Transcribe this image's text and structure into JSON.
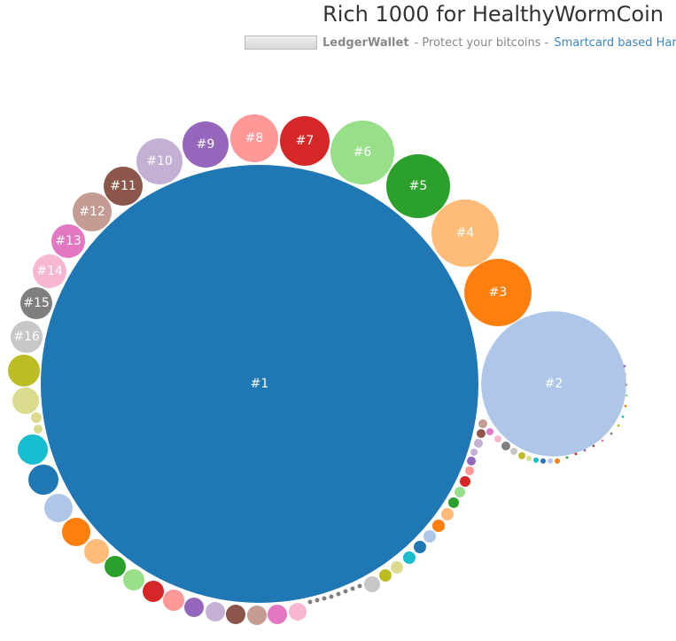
{
  "header": {
    "title": "Rich 1000 for HealthyWormCoin",
    "ad": {
      "brand": "LedgerWallet",
      "tagline": "- Protect your bitcoins -",
      "link": "Smartcard based Har"
    }
  },
  "chart_data": {
    "type": "bubble",
    "categories": [
      "#1",
      "#2",
      "#3",
      "#4",
      "#5",
      "#6",
      "#7",
      "#8",
      "#9",
      "#10",
      "#11",
      "#12",
      "#13",
      "#14",
      "#15",
      "#16",
      null,
      null,
      null,
      null,
      null,
      null,
      null,
      null,
      null,
      null,
      null,
      null,
      null,
      null,
      null,
      null,
      null,
      null,
      null,
      null,
      null,
      null,
      null,
      null,
      null,
      null,
      null,
      null,
      null,
      null,
      null,
      null,
      null,
      null,
      null,
      null,
      null,
      null,
      null,
      null,
      null,
      null,
      null,
      null,
      null,
      null,
      null,
      null,
      null,
      null,
      null,
      null,
      null,
      null,
      null,
      null,
      null,
      null,
      null,
      null,
      null,
      null,
      null,
      null,
      null,
      null,
      null
    ],
    "values": [
      61000,
      6700,
      1440,
      1440,
      1300,
      1300,
      784,
      729,
      676,
      676,
      484,
      484,
      361,
      361,
      324,
      324,
      324,
      225,
      36,
      25,
      289,
      289,
      256,
      256,
      196,
      144,
      144,
      144,
      144,
      121,
      121,
      121,
      121,
      121,
      100,
      6,
      6,
      6,
      6,
      6,
      6,
      6,
      6,
      81,
      49,
      49,
      49,
      49,
      49,
      49,
      49,
      36,
      36,
      36,
      25,
      25,
      16,
      25,
      25,
      25,
      16,
      16,
      25,
      16,
      16,
      9,
      9,
      9,
      9,
      9,
      2,
      2,
      2,
      2,
      2,
      2,
      2,
      2,
      2,
      2,
      2,
      2,
      2
    ],
    "colors": [
      "#1f77b4",
      "#aec7e8",
      "#ff7f0e",
      "#ffbb78",
      "#2ca02c",
      "#98df8a",
      "#d62728",
      "#ff9896",
      "#9467bd",
      "#c5b0d5",
      "#8c564b",
      "#c49c94",
      "#e377c2",
      "#f7b6d2",
      "#7f7f7f",
      "#c7c7c7",
      "#bcbd22",
      "#dbdb8d",
      "#dbdb8d",
      "#dbdb8d",
      "#17becf",
      "#1f77b4",
      "#aec7e8",
      "#ff7f0e",
      "#ffbb78",
      "#2ca02c",
      "#98df8a",
      "#d62728",
      "#ff9896",
      "#9467bd",
      "#c5b0d5",
      "#8c564b",
      "#c49c94",
      "#e377c2",
      "#f7b6d2",
      "#7f7f7f",
      "#7f7f7f",
      "#7f7f7f",
      "#7f7f7f",
      "#7f7f7f",
      "#7f7f7f",
      "#7f7f7f",
      "#7f7f7f",
      "#c7c7c7",
      "#bcbd22",
      "#dbdb8d",
      "#17becf",
      "#1f77b4",
      "#aec7e8",
      "#ff7f0e",
      "#ffbb78",
      "#2ca02c",
      "#98df8a",
      "#d62728",
      "#ff9896",
      "#9467bd",
      "#c5b0d5",
      "#c5b0d5",
      "#8c564b",
      "#c49c94",
      "#e377c2",
      "#f7b6d2",
      "#7f7f7f",
      "#c7c7c7",
      "#bcbd22",
      "#dbdb8d",
      "#17becf",
      "#1f77b4",
      "#aec7e8",
      "#ff7f0e",
      "#2ca02c",
      "#d62728",
      "#9467bd",
      "#8c564b",
      "#e377c2",
      "#7f7f7f",
      "#bcbd22",
      "#17becf",
      "#ff7f0e",
      "#98df8a",
      "#c49c94",
      "#c7c7c7",
      "#9467bd"
    ]
  }
}
